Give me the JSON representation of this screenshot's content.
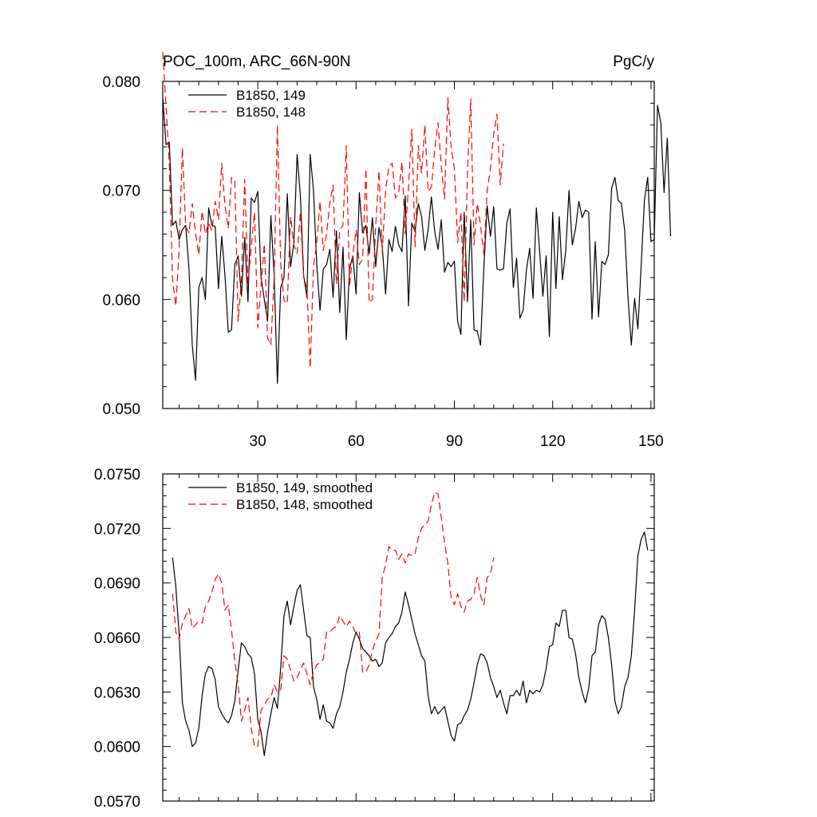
{
  "chart_data": [
    {
      "type": "line",
      "title_left": "POC_100m, ARC_66N-90N",
      "title_right": "PgC/y",
      "xlim": [
        1,
        151
      ],
      "ylim": [
        0.05,
        0.08
      ],
      "xticks": [
        30,
        60,
        90,
        120,
        150
      ],
      "xtick_labels": [
        "30",
        "60",
        "90",
        "120",
        "150"
      ],
      "yticks": [
        0.05,
        0.06,
        0.07,
        0.08
      ],
      "ytick_labels": [
        "0.050",
        "0.060",
        "0.070",
        "0.080"
      ],
      "legend": "top-left",
      "series": [
        {
          "name": "B1850, 149",
          "color": "#000000",
          "dash": "solid",
          "x_start": 1,
          "values": [
            0.0785,
            0.0742,
            0.0744,
            0.0668,
            0.0672,
            0.0655,
            0.0664,
            0.0668,
            0.0628,
            0.0558,
            0.0526,
            0.0611,
            0.062,
            0.06,
            0.0684,
            0.0668,
            0.0667,
            0.061,
            0.0658,
            0.0622,
            0.057,
            0.0572,
            0.0632,
            0.064,
            0.0603,
            0.0657,
            0.0598,
            0.0693,
            0.0689,
            0.0699,
            0.062,
            0.06,
            0.058,
            0.0677,
            0.0622,
            0.0523,
            0.0611,
            0.062,
            0.0697,
            0.063,
            0.0652,
            0.0733,
            0.0695,
            0.0622,
            0.0602,
            0.0733,
            0.07,
            0.0632,
            0.059,
            0.0628,
            0.0632,
            0.0646,
            0.0602,
            0.0663,
            0.0588,
            0.0648,
            0.0563,
            0.0628,
            0.064,
            0.0605,
            0.0698,
            0.0661,
            0.0668,
            0.0642,
            0.0675,
            0.063,
            0.0666,
            0.0649,
            0.0605,
            0.0655,
            0.0644,
            0.0667,
            0.065,
            0.0644,
            0.0695,
            0.0594,
            0.067,
            0.0662,
            0.0688,
            0.0676,
            0.0645,
            0.0664,
            0.0694,
            0.0662,
            0.0646,
            0.0673,
            0.0625,
            0.0634,
            0.063,
            0.0635,
            0.058,
            0.0568,
            0.068,
            0.0598,
            0.0673,
            0.0572,
            0.0571,
            0.0558,
            0.063,
            0.0686,
            0.0658,
            0.0685,
            0.0628,
            0.0627,
            0.0628,
            0.067,
            0.0683,
            0.0611,
            0.0638,
            0.0583,
            0.059,
            0.0627,
            0.0647,
            0.0601,
            0.0684,
            0.0645,
            0.0603,
            0.064,
            0.0566,
            0.068,
            0.061,
            0.0676,
            0.0618,
            0.0645,
            0.07,
            0.065,
            0.0665,
            0.069,
            0.0675,
            0.0682,
            0.068,
            0.0582,
            0.0653,
            0.0584,
            0.0635,
            0.0632,
            0.0641,
            0.0702,
            0.0712,
            0.0691,
            0.0688,
            0.0663,
            0.0602,
            0.0558,
            0.0601,
            0.0573,
            0.0631,
            0.0691,
            0.0712,
            0.0653,
            0.0655,
            0.0778,
            0.0762,
            0.0698,
            0.0748,
            0.0658
          ]
        },
        {
          "name": "B1850, 148",
          "color": "#ff0000",
          "dash": "dashed",
          "x_start": 1,
          "values": [
            0.0827,
            0.0778,
            0.0725,
            0.0618,
            0.0594,
            0.0646,
            0.0739,
            0.0667,
            0.0661,
            0.0688,
            0.0661,
            0.0641,
            0.0681,
            0.066,
            0.067,
            0.0663,
            0.069,
            0.0673,
            0.0725,
            0.0686,
            0.0665,
            0.0712,
            0.0709,
            0.058,
            0.0618,
            0.071,
            0.0615,
            0.0648,
            0.068,
            0.0574,
            0.0613,
            0.0651,
            0.0565,
            0.0558,
            0.062,
            0.076,
            0.0633,
            0.0599,
            0.0596,
            0.0676,
            0.065,
            0.0642,
            0.068,
            0.0621,
            0.061,
            0.0537,
            0.063,
            0.0652,
            0.069,
            0.0645,
            0.066,
            0.0688,
            0.0705,
            0.0614,
            0.0664,
            0.0668,
            0.0741,
            0.0613,
            0.0641,
            0.0664,
            0.0632,
            0.0637,
            0.072,
            0.0597,
            0.06,
            0.0668,
            0.0718,
            0.0643,
            0.07,
            0.0722,
            0.0725,
            0.0693,
            0.0698,
            0.0726,
            0.066,
            0.0703,
            0.0756,
            0.0648,
            0.0741,
            0.0716,
            0.076,
            0.0699,
            0.0703,
            0.0738,
            0.0762,
            0.0722,
            0.0692,
            0.0785,
            0.074,
            0.072,
            0.0652,
            0.068,
            0.0598,
            0.0716,
            0.0784,
            0.065,
            0.0688,
            0.0668,
            0.0641,
            0.07,
            0.072,
            0.0752,
            0.077,
            0.0705,
            0.0743
          ]
        }
      ]
    },
    {
      "type": "line",
      "xlim": [
        1,
        151
      ],
      "ylim": [
        0.057,
        0.075
      ],
      "xticks": [
        30,
        60,
        90,
        120,
        150
      ],
      "yticks": [
        0.057,
        0.06,
        0.063,
        0.066,
        0.069,
        0.072,
        0.075
      ],
      "ytick_labels": [
        "0.0570",
        "0.0600",
        "0.0630",
        "0.0660",
        "0.0690",
        "0.0720",
        "0.0750"
      ],
      "legend": "top-left",
      "series": [
        {
          "name": "B1850, 149, smoothed",
          "color": "#000000",
          "dash": "solid",
          "x_start": 4,
          "values": [
            0.0704,
            0.0688,
            0.0662,
            0.0624,
            0.0614,
            0.0609,
            0.06,
            0.0602,
            0.061,
            0.0628,
            0.064,
            0.0644,
            0.0643,
            0.0637,
            0.0622,
            0.0618,
            0.0615,
            0.0613,
            0.0617,
            0.0625,
            0.0642,
            0.0657,
            0.0655,
            0.0651,
            0.0649,
            0.064,
            0.0615,
            0.0608,
            0.0595,
            0.0608,
            0.0618,
            0.0627,
            0.0621,
            0.0643,
            0.0672,
            0.068,
            0.0667,
            0.0677,
            0.0686,
            0.0689,
            0.0675,
            0.0661,
            0.066,
            0.0633,
            0.0626,
            0.0615,
            0.0623,
            0.0614,
            0.0613,
            0.061,
            0.0618,
            0.0622,
            0.063,
            0.0641,
            0.0648,
            0.0657,
            0.0663,
            0.0659,
            0.0654,
            0.0652,
            0.065,
            0.0647,
            0.0648,
            0.0644,
            0.0646,
            0.0657,
            0.066,
            0.0662,
            0.0666,
            0.0668,
            0.0674,
            0.0685,
            0.0678,
            0.067,
            0.0662,
            0.0656,
            0.065,
            0.0647,
            0.0628,
            0.0618,
            0.0622,
            0.0618,
            0.062,
            0.0622,
            0.0614,
            0.0606,
            0.0603,
            0.0612,
            0.0613,
            0.0617,
            0.062,
            0.0626,
            0.0635,
            0.0645,
            0.0651,
            0.065,
            0.0646,
            0.0638,
            0.0633,
            0.0627,
            0.0631,
            0.0624,
            0.0618,
            0.0628,
            0.0628,
            0.0631,
            0.0628,
            0.0636,
            0.0624,
            0.0631,
            0.0629,
            0.0631,
            0.063,
            0.0634,
            0.0643,
            0.0655,
            0.0656,
            0.0668,
            0.0666,
            0.0675,
            0.0675,
            0.066,
            0.0659,
            0.0651,
            0.0638,
            0.063,
            0.0624,
            0.0632,
            0.065,
            0.0652,
            0.0667,
            0.0672,
            0.067,
            0.066,
            0.0645,
            0.0625,
            0.0618,
            0.0622,
            0.0633,
            0.0638,
            0.065,
            0.0675,
            0.0705,
            0.0714,
            0.0718,
            0.0708
          ]
        },
        {
          "name": "B1850, 148, smoothed",
          "color": "#ff0000",
          "dash": "dashed",
          "x_start": 4,
          "values": [
            0.0684,
            0.0663,
            0.0659,
            0.0668,
            0.0672,
            0.0676,
            0.0665,
            0.0667,
            0.0669,
            0.0668,
            0.0677,
            0.068,
            0.0685,
            0.0692,
            0.0695,
            0.069,
            0.0675,
            0.0678,
            0.0664,
            0.0647,
            0.0634,
            0.0614,
            0.062,
            0.0627,
            0.061,
            0.06,
            0.06,
            0.062,
            0.0623,
            0.0626,
            0.0627,
            0.0634,
            0.063,
            0.0631,
            0.065,
            0.0648,
            0.0642,
            0.0636,
            0.0638,
            0.0642,
            0.0646,
            0.064,
            0.0634,
            0.0641,
            0.0645,
            0.0646,
            0.0648,
            0.0663,
            0.0663,
            0.0665,
            0.0666,
            0.0672,
            0.0669,
            0.0666,
            0.0669,
            0.0666,
            0.0662,
            0.0663,
            0.0641,
            0.0641,
            0.0645,
            0.0653,
            0.0658,
            0.0662,
            0.0693,
            0.07,
            0.071,
            0.0708,
            0.0708,
            0.0703,
            0.0706,
            0.0701,
            0.0706,
            0.0705,
            0.0706,
            0.0715,
            0.072,
            0.0722,
            0.0724,
            0.0733,
            0.074,
            0.0739,
            0.0726,
            0.0712,
            0.0701,
            0.0682,
            0.0678,
            0.0684,
            0.0677,
            0.0674,
            0.068,
            0.0681,
            0.0684,
            0.0693,
            0.0683,
            0.0678,
            0.0693,
            0.0695,
            0.0704
          ]
        }
      ]
    }
  ]
}
